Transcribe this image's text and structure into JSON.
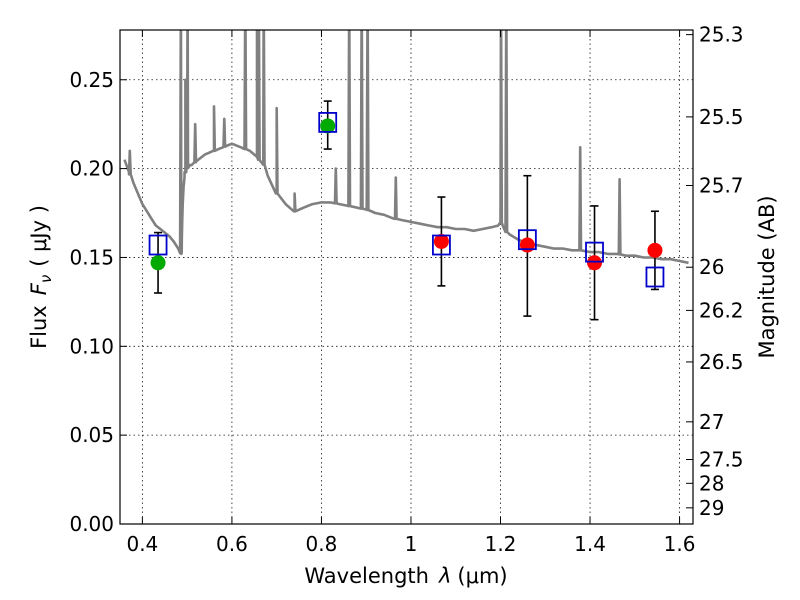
{
  "chart_data": {
    "type": "scatter",
    "title": "",
    "xlabel_text": "Wavelength",
    "xlabel_symbol": "λ",
    "xlabel_unit": "(μm)",
    "ylabel_text": "Flux",
    "ylabel_symbol": "F",
    "ylabel_subscript": "ν",
    "ylabel_unit": "( μJy )",
    "y2label": "Magnitude (AB)",
    "xlim": [
      0.35,
      1.63
    ],
    "ylim": [
      0.0,
      0.278
    ],
    "x_ticks": [
      0.4,
      0.6,
      0.8,
      1.0,
      1.2,
      1.4,
      1.6
    ],
    "x_tick_labels": [
      "0.4",
      "0.6",
      "0.8",
      "1",
      "1.2",
      "1.4",
      "1.6"
    ],
    "y_ticks": [
      0.0,
      0.05,
      0.1,
      0.15,
      0.2,
      0.25
    ],
    "y_tick_labels": [
      "0.00",
      "0.05",
      "0.10",
      "0.15",
      "0.20",
      "0.25"
    ],
    "y2_ticks": [
      {
        "mag": "25.3",
        "flux": 0.2754
      },
      {
        "mag": "25.5",
        "flux": 0.2291
      },
      {
        "mag": "25.7",
        "flux": 0.1905
      },
      {
        "mag": "26",
        "flux": 0.1445
      },
      {
        "mag": "26.2",
        "flux": 0.1202
      },
      {
        "mag": "26.5",
        "flux": 0.0912
      },
      {
        "mag": "27",
        "flux": 0.0575
      },
      {
        "mag": "27.5",
        "flux": 0.0363
      },
      {
        "mag": "28",
        "flux": 0.0229
      },
      {
        "mag": "29",
        "flux": 0.0091
      }
    ],
    "grid": true,
    "colors": {
      "template": "#808080",
      "observed_green": "#00aa00",
      "observed_red": "#ff0000",
      "model_boxes": "#0000cc",
      "errorbars": "#000000"
    },
    "template_spectrum": {
      "x": [
        0.36,
        0.37,
        0.38,
        0.39,
        0.4,
        0.41,
        0.42,
        0.43,
        0.44,
        0.45,
        0.46,
        0.47,
        0.48,
        0.487,
        0.488,
        0.489,
        0.49,
        0.492,
        0.494,
        0.496,
        0.498,
        0.5,
        0.502,
        0.504,
        0.506,
        0.508,
        0.51,
        0.52,
        0.53,
        0.54,
        0.55,
        0.56,
        0.57,
        0.58,
        0.59,
        0.6,
        0.62,
        0.64,
        0.655,
        0.656,
        0.657,
        0.658,
        0.66,
        0.664,
        0.668,
        0.67,
        0.68,
        0.7,
        0.72,
        0.74,
        0.76,
        0.78,
        0.8,
        0.82,
        0.84,
        0.86,
        0.88,
        0.9,
        0.92,
        0.94,
        0.96,
        0.98,
        1.0,
        1.02,
        1.04,
        1.06,
        1.08,
        1.1,
        1.12,
        1.14,
        1.16,
        1.18,
        1.195,
        1.2,
        1.205,
        1.21,
        1.22,
        1.24,
        1.26,
        1.28,
        1.3,
        1.32,
        1.34,
        1.36,
        1.38,
        1.4,
        1.42,
        1.44,
        1.46,
        1.48,
        1.5,
        1.52,
        1.54,
        1.56,
        1.58,
        1.6,
        1.62
      ],
      "y": [
        0.205,
        0.198,
        0.192,
        0.186,
        0.18,
        0.176,
        0.172,
        0.168,
        0.166,
        0.164,
        0.162,
        0.159,
        0.155,
        0.152,
        0.16,
        0.17,
        0.18,
        0.19,
        0.195,
        0.198,
        0.2,
        0.2,
        0.201,
        0.201,
        0.202,
        0.202,
        0.202,
        0.204,
        0.206,
        0.208,
        0.209,
        0.21,
        0.211,
        0.212,
        0.213,
        0.214,
        0.212,
        0.21,
        0.207,
        0.207,
        0.206,
        0.206,
        0.205,
        0.204,
        0.203,
        0.203,
        0.196,
        0.186,
        0.18,
        0.176,
        0.178,
        0.18,
        0.181,
        0.181,
        0.18,
        0.179,
        0.178,
        0.177,
        0.175,
        0.174,
        0.172,
        0.171,
        0.17,
        0.169,
        0.168,
        0.167,
        0.167,
        0.166,
        0.166,
        0.165,
        0.166,
        0.167,
        0.168,
        0.17,
        0.168,
        0.165,
        0.163,
        0.16,
        0.158,
        0.157,
        0.156,
        0.155,
        0.155,
        0.154,
        0.154,
        0.153,
        0.153,
        0.152,
        0.152,
        0.151,
        0.151,
        0.15,
        0.15,
        0.149,
        0.149,
        0.148,
        0.147
      ],
      "lines": [
        {
          "x": 0.372,
          "peak": 0.21
        },
        {
          "x": 0.486,
          "peak": 0.3
        },
        {
          "x": 0.496,
          "peak": 0.25
        },
        {
          "x": 0.501,
          "peak": 0.3
        },
        {
          "x": 0.518,
          "peak": 0.225
        },
        {
          "x": 0.56,
          "peak": 0.235
        },
        {
          "x": 0.583,
          "peak": 0.228
        },
        {
          "x": 0.63,
          "peak": 0.3
        },
        {
          "x": 0.656,
          "peak": 0.3
        },
        {
          "x": 0.66,
          "peak": 0.3
        },
        {
          "x": 0.671,
          "peak": 0.3
        },
        {
          "x": 0.7,
          "peak": 0.234
        },
        {
          "x": 0.74,
          "peak": 0.186
        },
        {
          "x": 0.832,
          "peak": 0.2
        },
        {
          "x": 0.862,
          "peak": 0.3
        },
        {
          "x": 0.89,
          "peak": 0.3
        },
        {
          "x": 0.903,
          "peak": 0.3
        },
        {
          "x": 0.966,
          "peak": 0.195
        },
        {
          "x": 1.201,
          "peak": 0.3
        },
        {
          "x": 1.213,
          "peak": 0.3
        },
        {
          "x": 1.378,
          "peak": 0.212
        },
        {
          "x": 1.466,
          "peak": 0.194
        }
      ]
    },
    "observed": [
      {
        "x": 0.435,
        "y": 0.147,
        "yerr_low": 0.13,
        "yerr_high": 0.164,
        "color": "green"
      },
      {
        "x": 0.814,
        "y": 0.224,
        "yerr_low": 0.211,
        "yerr_high": 0.238,
        "color": "green"
      },
      {
        "x": 1.068,
        "y": 0.159,
        "yerr_low": 0.134,
        "yerr_high": 0.184,
        "color": "red"
      },
      {
        "x": 1.26,
        "y": 0.157,
        "yerr_low": 0.117,
        "yerr_high": 0.196,
        "color": "red"
      },
      {
        "x": 1.41,
        "y": 0.147,
        "yerr_low": 0.115,
        "yerr_high": 0.179,
        "color": "red"
      },
      {
        "x": 1.545,
        "y": 0.154,
        "yerr_low": 0.132,
        "yerr_high": 0.176,
        "color": "red"
      }
    ],
    "model_boxes": [
      {
        "x": 0.435,
        "y": 0.157
      },
      {
        "x": 0.814,
        "y": 0.226
      },
      {
        "x": 1.068,
        "y": 0.157
      },
      {
        "x": 1.26,
        "y": 0.16
      },
      {
        "x": 1.41,
        "y": 0.153
      },
      {
        "x": 1.545,
        "y": 0.139
      }
    ]
  }
}
